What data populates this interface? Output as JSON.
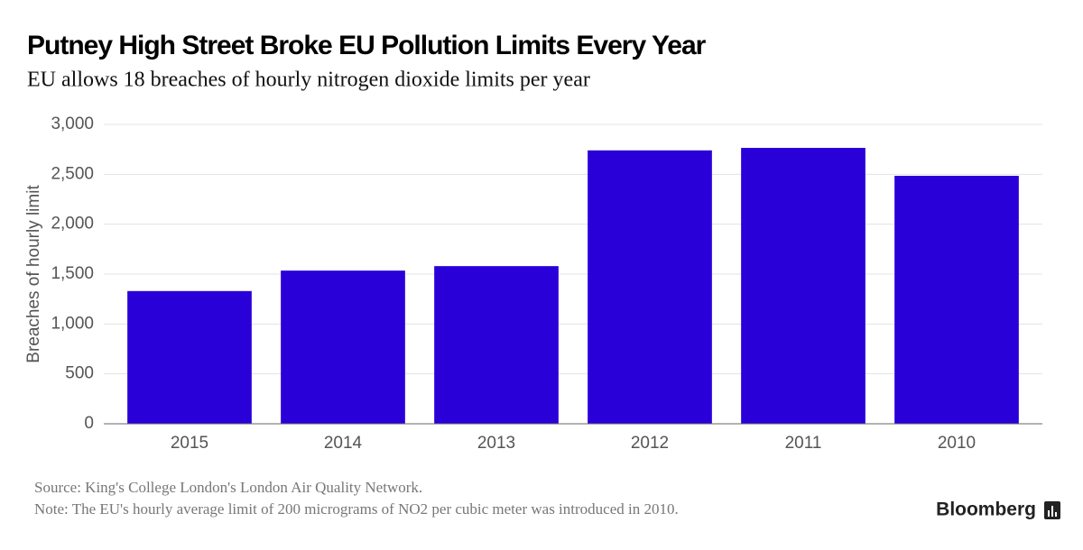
{
  "chart_data": {
    "type": "bar",
    "title": "Putney High Street Broke EU Pollution Limits Every Year",
    "subtitle": "EU allows 18 breaches of hourly nitrogen dioxide limits per year",
    "y_label": "Breaches of hourly limit",
    "categories": [
      "2015",
      "2014",
      "2013",
      "2012",
      "2011",
      "2010"
    ],
    "values": [
      1330,
      1535,
      1580,
      2740,
      2765,
      2485
    ],
    "color": "#2a00d9",
    "ylim": [
      0,
      3000
    ],
    "yticks": [
      0,
      500,
      {
        "value": 1000,
        "label": "1,000"
      },
      {
        "value": 1500,
        "label": "1,500"
      },
      {
        "value": 2000,
        "label": "2,000"
      },
      {
        "value": 2500,
        "label": "2,500"
      },
      {
        "value": 3000,
        "label": "3,000"
      }
    ],
    "grid": true,
    "source": "Source: King's College London's London Air Quality Network.",
    "note": "Note: The EU's hourly average limit of 200 micrograms of NO2 per cubic meter was introduced in 2010.",
    "brand": "Bloomberg"
  }
}
